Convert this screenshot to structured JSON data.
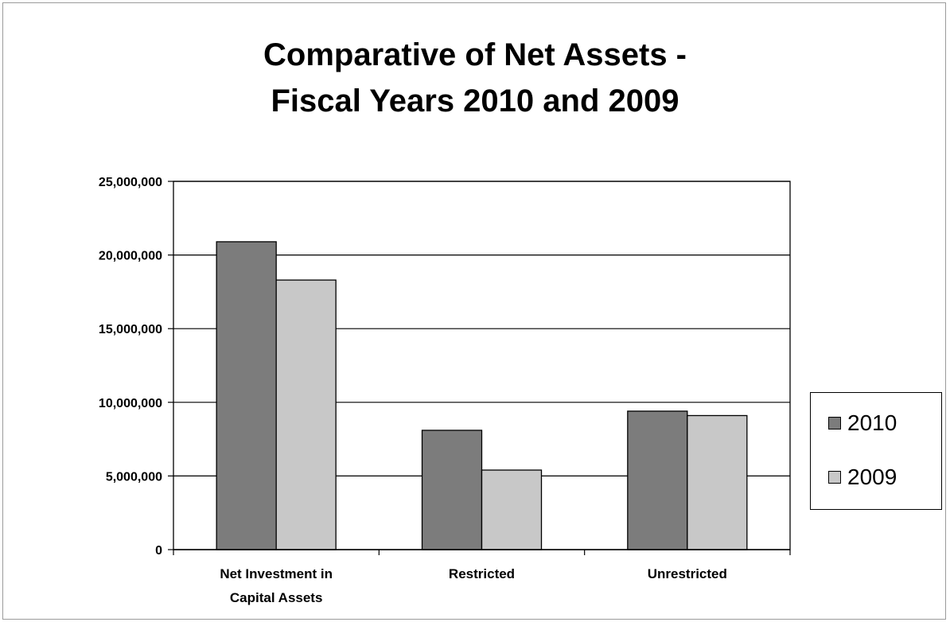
{
  "chart_data": {
    "type": "bar",
    "title": [
      "Comparative of Net Assets -",
      "Fiscal Years 2010 and 2009"
    ],
    "categories": [
      [
        "Net Investment in",
        "Capital Assets"
      ],
      [
        "Restricted"
      ],
      [
        "Unrestricted"
      ]
    ],
    "series": [
      {
        "name": "2010",
        "values": [
          20900000,
          8100000,
          9400000
        ],
        "color": "#7c7c7c"
      },
      {
        "name": "2009",
        "values": [
          18300000,
          5400000,
          9100000
        ],
        "color": "#c8c8c8"
      }
    ],
    "yticks": [
      "0",
      "5,000,000",
      "10,000,000",
      "15,000,000",
      "20,000,000",
      "25,000,000"
    ],
    "ylim": [
      0,
      25000000
    ],
    "grid": true,
    "legend_position": "right"
  }
}
